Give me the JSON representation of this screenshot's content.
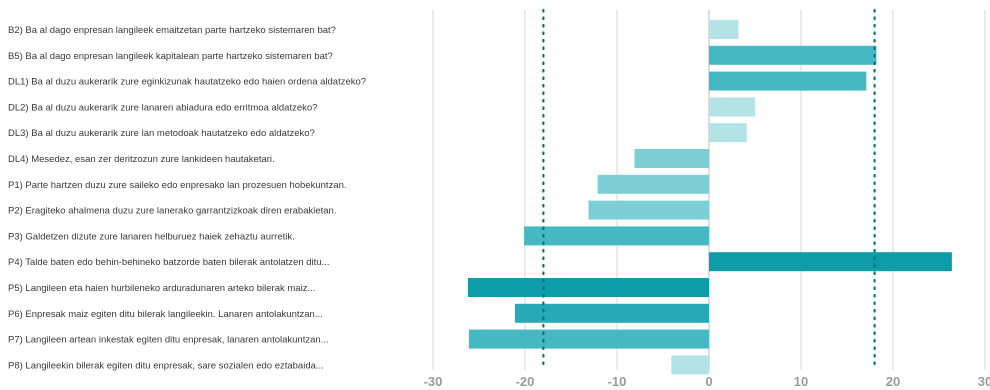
{
  "chart_data": {
    "type": "bar",
    "orientation": "horizontal",
    "categories": [
      "B2) Ba al dago enpresan langileek emaitzetan parte hartzeko sistemaren bat?",
      "B5) Ba al dago enpresan langileek kapitalean parte hartzeko sistemaren bat?",
      "DL1) Ba al duzu aukerarik zure eginkizunak hautatzeko edo haien ordena aldatzeko?",
      "DL2) Ba al duzu aukerarik zure lanaren abiadura edo erritmoa aldatzeko?",
      "DL3) Ba al duzu aukerarik zure lan metodoak hautatzeko edo aldatzeko?",
      "DL4) Mesedez, esan zer deritzozun zure lankideen hautaketari.",
      "P1) Parte hartzen duzu zure saileko edo enpresako lan prozesuen hobekuntzan.",
      "P2) Eragiteko ahalmena duzu zure lanerako garrantzizkoak diren erabakietan.",
      "P3) Galdetzen dizute zure lanaren helburuez haiek zehaztu aurretik.",
      "P4) Talde baten edo behin-behineko batzorde baten bilerak antolatzen ditu...",
      "P5) Langileen eta haien hurbileneko arduradunaren arteko bilerak maiz...",
      "P6) Enpresak maiz egiten ditu bilerak langileekin. Lanaren antolakuntzan...",
      "P7) Langileen artean inkestak egiten ditu enpresak, lanaren antolakuntzan...",
      "P8) Langileekin bilerak egiten ditu enpresak, sare sozialen edo eztabaida..."
    ],
    "values": [
      3.2,
      18.2,
      17.1,
      5.0,
      4.1,
      -8.1,
      -12.1,
      -13.1,
      -20.1,
      26.4,
      -26.2,
      -21.1,
      -26.1,
      -4.1
    ],
    "bar_colors": [
      "#b3e3e6",
      "#45b9c3",
      "#45b9c3",
      "#b3e3e6",
      "#b3e3e6",
      "#7dcfd6",
      "#7dcfd6",
      "#7dcfd6",
      "#45b9c3",
      "#0c9da8",
      "#0c9da8",
      "#27aab5",
      "#45b9c3",
      "#b3e3e6"
    ],
    "xlim": [
      -31,
      30
    ],
    "xticks": [
      -30,
      -20,
      -10,
      0,
      10,
      20,
      30
    ],
    "reference_lines": [
      -18,
      18
    ],
    "title": "",
    "xlabel": "",
    "ylabel": "",
    "grid": "vertical",
    "legend": "none"
  }
}
